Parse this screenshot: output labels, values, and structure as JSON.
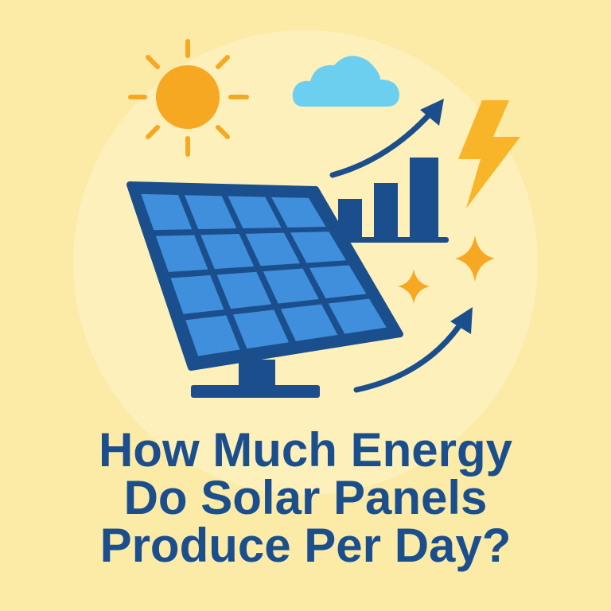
{
  "title": {
    "lines": [
      "How Much Energy",
      "Do Solar Panels",
      "Produce Per Day?"
    ]
  }
}
